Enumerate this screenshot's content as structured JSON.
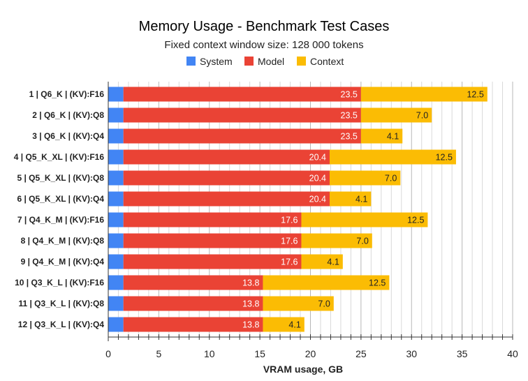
{
  "chart_data": {
    "type": "bar",
    "orientation": "horizontal",
    "stacked": true,
    "title": "Memory Usage - Benchmark Test Cases",
    "subtitle": "Fixed context window size: 128 000 tokens",
    "xlabel": "VRAM usage, GB",
    "ylabel": "",
    "xlim": [
      0,
      40
    ],
    "xticks": [
      "0",
      "5",
      "10",
      "15",
      "20",
      "25",
      "30",
      "35",
      "40"
    ],
    "grid": true,
    "legend_position": "top",
    "categories": [
      "1 | Q6_K | (KV):F16",
      "2 | Q6_K | (KV):Q8",
      "3 | Q6_K | (KV):Q4",
      "4 | Q5_K_XL | (KV):F16",
      "5 | Q5_K_XL | (KV):Q8",
      "6 | Q5_K_XL | (KV):Q4",
      "7 | Q4_K_M | (KV):F16",
      "8 | Q4_K_M | (KV):Q8",
      "9 | Q4_K_M | (KV):Q4",
      "10 | Q3_K_L | (KV):F16",
      "11 | Q3_K_L | (KV):Q8",
      "12 | Q3_K_L | (KV):Q4"
    ],
    "series": [
      {
        "name": "System",
        "color": "#4285f4",
        "values": [
          1.5,
          1.5,
          1.5,
          1.5,
          1.5,
          1.5,
          1.5,
          1.5,
          1.5,
          1.5,
          1.5,
          1.5
        ],
        "labels": false
      },
      {
        "name": "Model",
        "color": "#ea4335",
        "values": [
          23.5,
          23.5,
          23.5,
          20.4,
          20.4,
          20.4,
          17.6,
          17.6,
          17.6,
          13.8,
          13.8,
          13.8
        ],
        "labels": true,
        "label_color": "#ffffff"
      },
      {
        "name": "Context",
        "color": "#fbbc04",
        "values": [
          12.5,
          7.0,
          4.1,
          12.5,
          7.0,
          4.1,
          12.5,
          7.0,
          4.1,
          12.5,
          7.0,
          4.1
        ],
        "labels": true,
        "label_color": "#222222"
      }
    ]
  }
}
